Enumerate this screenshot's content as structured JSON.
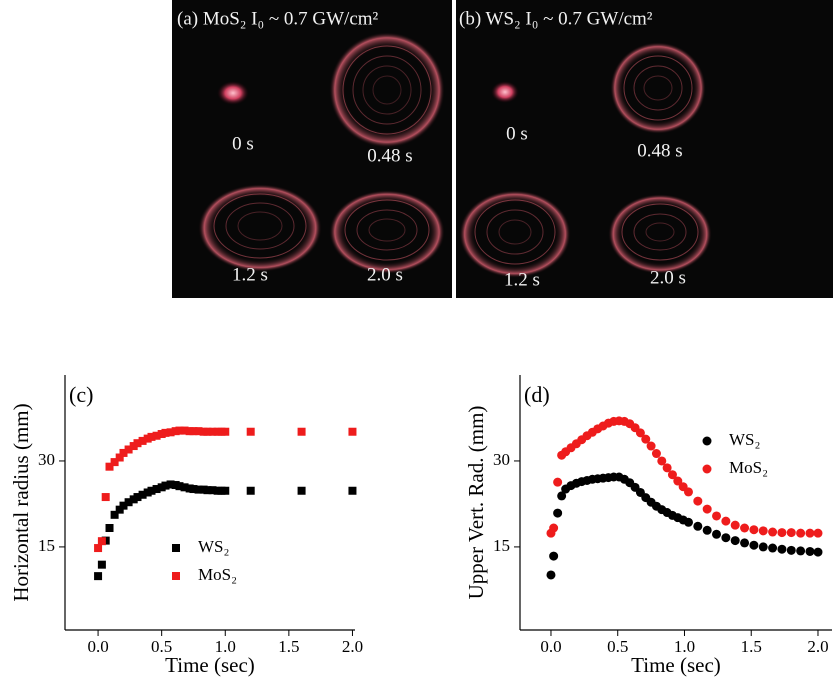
{
  "image_panels": [
    {
      "title": "(a) MoS₂  I₀ ~ 0.7 GW/cm²",
      "labels": [
        "0 s",
        "0.48 s",
        "1.2 s",
        "2.0 s"
      ]
    },
    {
      "title": "(b) WS₂  I₀ ~ 0.7 GW/cm²",
      "labels": [
        "0 s",
        "0.48 s",
        "1.2 s",
        "2.0 s"
      ]
    }
  ],
  "chart_data": [
    {
      "type": "scatter",
      "panel_label": "(c)",
      "x_label": "Time (sec)",
      "y_label": "Horizontal radius (mm)",
      "marker": "square",
      "legend": "center",
      "grid": false,
      "xlim": [
        -0.26,
        2.02
      ],
      "ylim": [
        0.5,
        45
      ],
      "xticks": [
        {
          "value": 0,
          "label": "0.0"
        },
        {
          "value": 0.5,
          "label": "0.5"
        },
        {
          "value": 1,
          "label": "1.0"
        },
        {
          "value": 1.5,
          "label": "1.5"
        },
        {
          "value": 2,
          "label": "2.0"
        }
      ],
      "yticks": [
        15,
        30
      ],
      "x": [
        0,
        0.03,
        0.06,
        0.09,
        0.13,
        0.17,
        0.2,
        0.24,
        0.28,
        0.31,
        0.35,
        0.39,
        0.42,
        0.46,
        0.5,
        0.53,
        0.57,
        0.61,
        0.64,
        0.68,
        0.72,
        0.75,
        0.79,
        0.83,
        0.86,
        0.9,
        0.94,
        0.97,
        1.0,
        1.2,
        1.6,
        2.0
      ],
      "series": [
        {
          "name": "WS₂",
          "color": "#000000",
          "values": [
            9.9,
            11.9,
            16.1,
            18.3,
            20.6,
            21.5,
            22.2,
            22.8,
            23.3,
            23.7,
            24.1,
            24.5,
            24.8,
            25.1,
            25.4,
            25.7,
            25.9,
            25.8,
            25.6,
            25.4,
            25.2,
            25.1,
            25.0,
            25.0,
            24.9,
            24.9,
            24.8,
            24.8,
            24.8,
            24.8,
            24.8,
            24.8
          ]
        },
        {
          "name": "MoS₂",
          "color": "#ee1c1c",
          "values": [
            14.8,
            16.0,
            23.7,
            29.0,
            29.8,
            30.6,
            31.4,
            32.0,
            32.6,
            33.1,
            33.5,
            33.9,
            34.2,
            34.4,
            34.7,
            34.9,
            35.0,
            35.2,
            35.3,
            35.3,
            35.2,
            35.2,
            35.2,
            35.1,
            35.1,
            35.1,
            35.1,
            35.1,
            35.1,
            35.1,
            35.1,
            35.1
          ]
        }
      ]
    },
    {
      "type": "scatter",
      "panel_label": "(d)",
      "x_label": "Time (sec)",
      "y_label": "Upper Vert. Rad. (mm)",
      "marker": "circle",
      "legend": "upper right",
      "grid": false,
      "xlim": [
        -0.232,
        2.105
      ],
      "ylim": [
        0.5,
        45
      ],
      "xticks": [
        {
          "value": 0,
          "label": "0.0"
        },
        {
          "value": 0.5,
          "label": "0.5"
        },
        {
          "value": 1,
          "label": "1.0"
        },
        {
          "value": 1.5,
          "label": "1.5"
        },
        {
          "value": 2,
          "label": "2.0"
        }
      ],
      "yticks": [
        15,
        30
      ],
      "x": [
        0,
        0.02,
        0.05,
        0.08,
        0.11,
        0.15,
        0.19,
        0.23,
        0.27,
        0.31,
        0.35,
        0.39,
        0.43,
        0.47,
        0.51,
        0.55,
        0.59,
        0.63,
        0.67,
        0.71,
        0.75,
        0.79,
        0.83,
        0.87,
        0.91,
        0.95,
        0.99,
        1.03,
        1.1,
        1.17,
        1.24,
        1.31,
        1.38,
        1.45,
        1.52,
        1.59,
        1.66,
        1.73,
        1.8,
        1.87,
        1.94,
        2.0
      ],
      "series": [
        {
          "name": "WS₂",
          "color": "#000000",
          "values": [
            10.1,
            13.4,
            20.9,
            23.9,
            25.1,
            25.7,
            26.1,
            26.4,
            26.6,
            26.8,
            26.9,
            27.0,
            27.1,
            27.2,
            27.2,
            26.8,
            26.2,
            25.4,
            24.5,
            23.6,
            22.8,
            22.1,
            21.5,
            21.0,
            20.5,
            20.1,
            19.7,
            19.3,
            18.6,
            17.9,
            17.2,
            16.6,
            16.1,
            15.7,
            15.3,
            15.0,
            14.8,
            14.6,
            14.4,
            14.3,
            14.2,
            14.1
          ]
        },
        {
          "name": "MoS₂",
          "color": "#ee1c1c",
          "values": [
            17.4,
            18.3,
            26.3,
            31.0,
            31.6,
            32.3,
            33.0,
            33.7,
            34.4,
            35.0,
            35.6,
            36.1,
            36.6,
            36.9,
            37.0,
            36.9,
            36.5,
            35.8,
            34.9,
            33.8,
            32.6,
            31.3,
            30.0,
            28.8,
            27.6,
            26.5,
            25.5,
            24.6,
            23.0,
            21.6,
            20.4,
            19.5,
            18.8,
            18.3,
            18.0,
            17.8,
            17.6,
            17.5,
            17.5,
            17.4,
            17.4,
            17.4
          ]
        }
      ]
    }
  ]
}
